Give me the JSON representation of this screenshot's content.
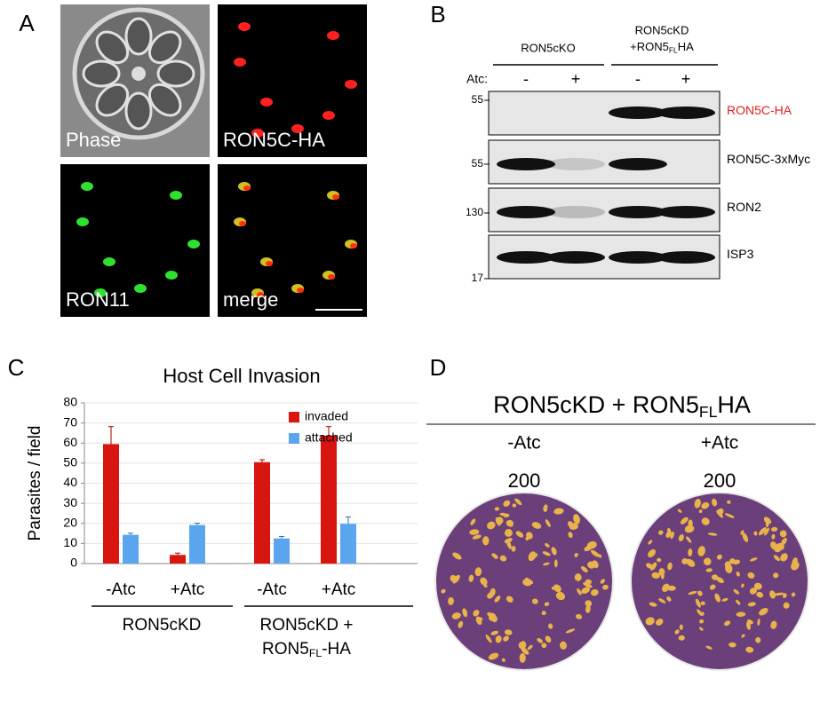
{
  "panel_a": {
    "letter": "A",
    "labels": [
      "Phase",
      "RON5C-HA",
      "RON11",
      "merge"
    ]
  },
  "panel_b": {
    "letter": "B",
    "group1": "RON5cKO",
    "group2_line1": "RON5cKD",
    "group2_line2": {
      "pre": "+RON5",
      "sub": "FL",
      "post": "HA"
    },
    "atc_label": "Atc:",
    "lanes": [
      "-",
      "+",
      "-",
      "+"
    ],
    "blots": [
      {
        "name": "RON5C-HA",
        "marker": "55"
      },
      {
        "name": "RON5C-3xMyc",
        "marker": "55"
      },
      {
        "name": "RON2",
        "marker": "130"
      },
      {
        "name": "ISP3",
        "marker": "17"
      }
    ]
  },
  "chart_data": {
    "type": "bar",
    "panel_letter": "C",
    "title": "Host Cell Invasion",
    "y_label": "Parasites / field",
    "categories": [
      "-Atc",
      "+Atc",
      "-Atc",
      "+Atc"
    ],
    "groups": [
      {
        "label": "RON5cKD"
      },
      {
        "label": "RON5cKD +",
        "label2": {
          "pre": "RON5",
          "sub": "FL",
          "post": "-HA"
        }
      }
    ],
    "series": [
      {
        "name": "invaded",
        "color": "#d9150f",
        "values": [
          59.5,
          4.3,
          50.5,
          63.8
        ],
        "errors": [
          8.7,
          0.9,
          1.2,
          4.4
        ]
      },
      {
        "name": "attached",
        "color": "#5aa5ee",
        "values": [
          14.3,
          19.2,
          12.5,
          19.8
        ],
        "errors": [
          0.8,
          0.9,
          1.0,
          3.4
        ]
      }
    ],
    "ylim": [
      0,
      80
    ],
    "yticks": [
      0,
      10,
      20,
      30,
      40,
      50,
      60,
      70,
      80
    ],
    "grid": true
  },
  "panel_d": {
    "letter": "D",
    "title": {
      "pre": "RON5cKD + RON5",
      "sub": "FL",
      "post": "HA"
    },
    "conditions": [
      {
        "label": "-Atc",
        "count": "200"
      },
      {
        "label": "+Atc",
        "count": "200"
      }
    ]
  }
}
